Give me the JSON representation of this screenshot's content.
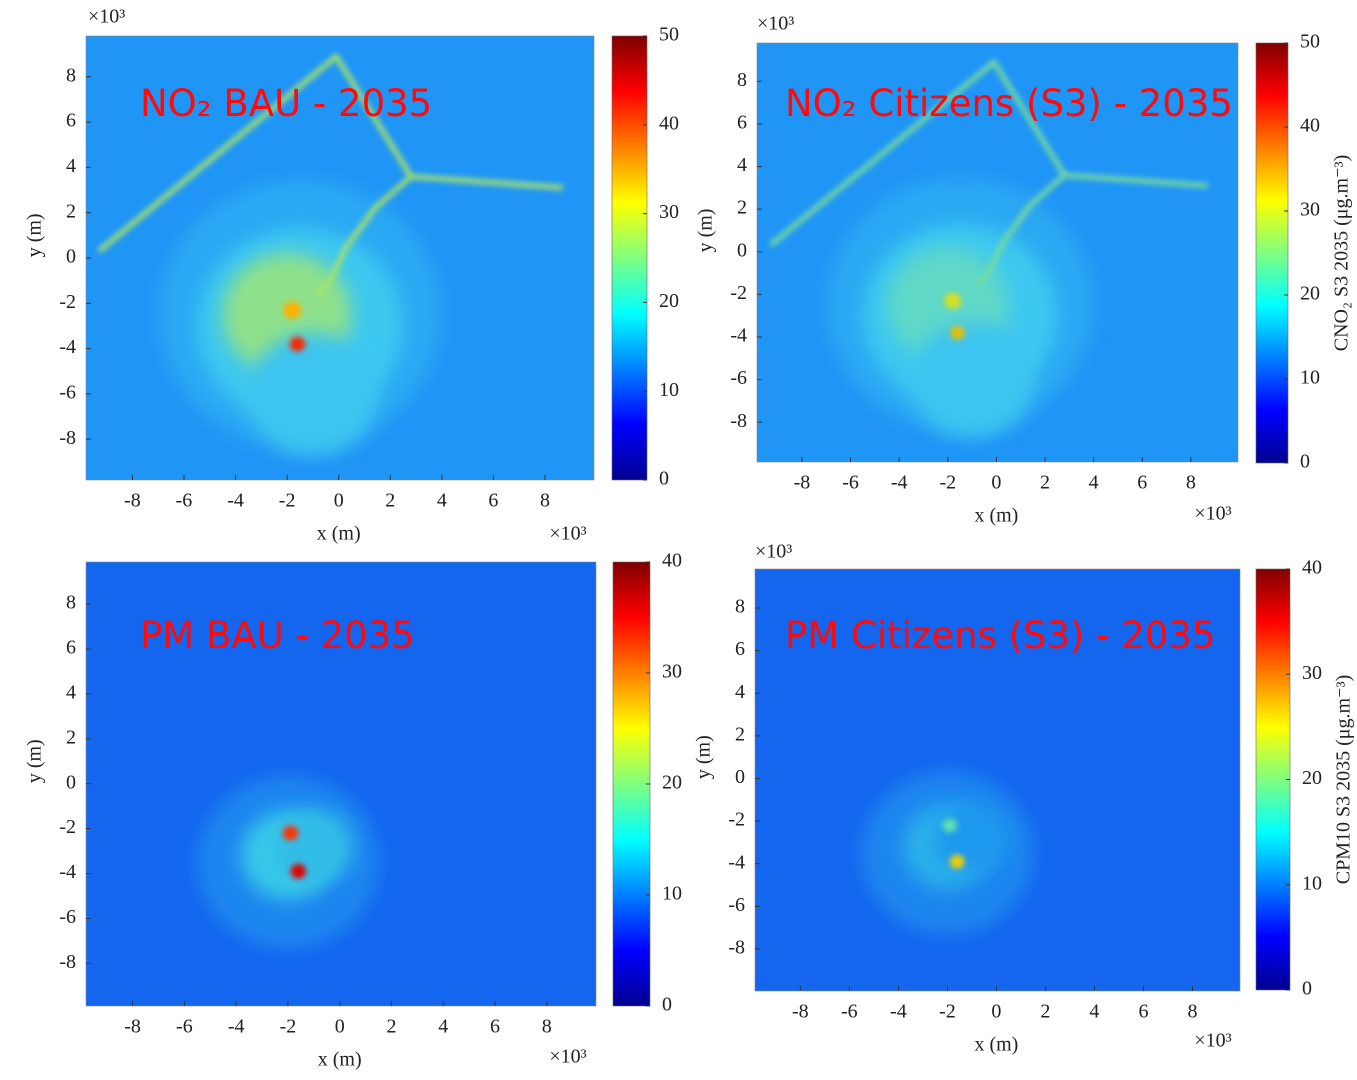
{
  "chart_data": [
    {
      "type": "heatmap",
      "title": "NO₂ BAU - 2035",
      "xlabel": "x (m)",
      "ylabel": "y (m)",
      "x_exponent": "×10³",
      "y_exponent": "×10³",
      "xlim": [
        -9.8,
        9.9
      ],
      "ylim": [
        -9.8,
        9.8
      ],
      "xticks": [
        -8,
        -6,
        -4,
        -2,
        0,
        2,
        4,
        6,
        8
      ],
      "yticks": [
        -8,
        -6,
        -4,
        -2,
        0,
        2,
        4,
        6,
        8
      ],
      "colormap": "jet",
      "clim": [
        0,
        50
      ],
      "cticks": [
        0,
        10,
        20,
        30,
        40,
        50
      ]
    },
    {
      "type": "heatmap",
      "title": "NO₂ Citizens (S3) - 2035",
      "xlabel": "x (m)",
      "ylabel": "y (m)",
      "x_exponent": "×10³",
      "y_exponent": "×10³",
      "xlim": [
        -9.85,
        9.94
      ],
      "ylim": [
        -9.87,
        9.8
      ],
      "xticks": [
        -8,
        -6,
        -4,
        -2,
        0,
        2,
        4,
        6,
        8
      ],
      "yticks": [
        -8,
        -6,
        -4,
        -2,
        0,
        2,
        4,
        6,
        8
      ],
      "colormap": "jet",
      "clim": [
        0,
        50
      ],
      "cticks": [
        0,
        10,
        20,
        30,
        40,
        50
      ],
      "clabel": "CNO₂ S3 2035 (μg.m⁻³)"
    },
    {
      "type": "heatmap",
      "title": "PM BAU - 2035",
      "xlabel": "x (m)",
      "ylabel": "y (m)",
      "x_exponent": "×10³",
      "xlim": [
        -9.8,
        9.9
      ],
      "ylim": [
        -9.9,
        9.87
      ],
      "xticks": [
        -8,
        -6,
        -4,
        -2,
        0,
        2,
        4,
        6,
        8
      ],
      "yticks": [
        -8,
        -6,
        -4,
        -2,
        0,
        2,
        4,
        6,
        8
      ],
      "colormap": "jet",
      "clim": [
        0,
        40
      ],
      "cticks": [
        0,
        10,
        20,
        30,
        40
      ]
    },
    {
      "type": "heatmap",
      "title": "PM Citizens (S3) - 2035",
      "xlabel": "x (m)",
      "ylabel": "y (m)",
      "x_exponent": "×10³",
      "y_exponent": "×10³",
      "xlim": [
        -9.85,
        9.94
      ],
      "ylim": [
        -9.97,
        9.83
      ],
      "xticks": [
        -8,
        -6,
        -4,
        -2,
        0,
        2,
        4,
        6,
        8
      ],
      "yticks": [
        -8,
        -6,
        -4,
        -2,
        0,
        2,
        4,
        6,
        8
      ],
      "colormap": "jet",
      "clim": [
        0,
        40
      ],
      "cticks": [
        0,
        10,
        20,
        30,
        40
      ],
      "clabel": "CPM10 S3 2035 (μg.m⁻³)"
    }
  ]
}
